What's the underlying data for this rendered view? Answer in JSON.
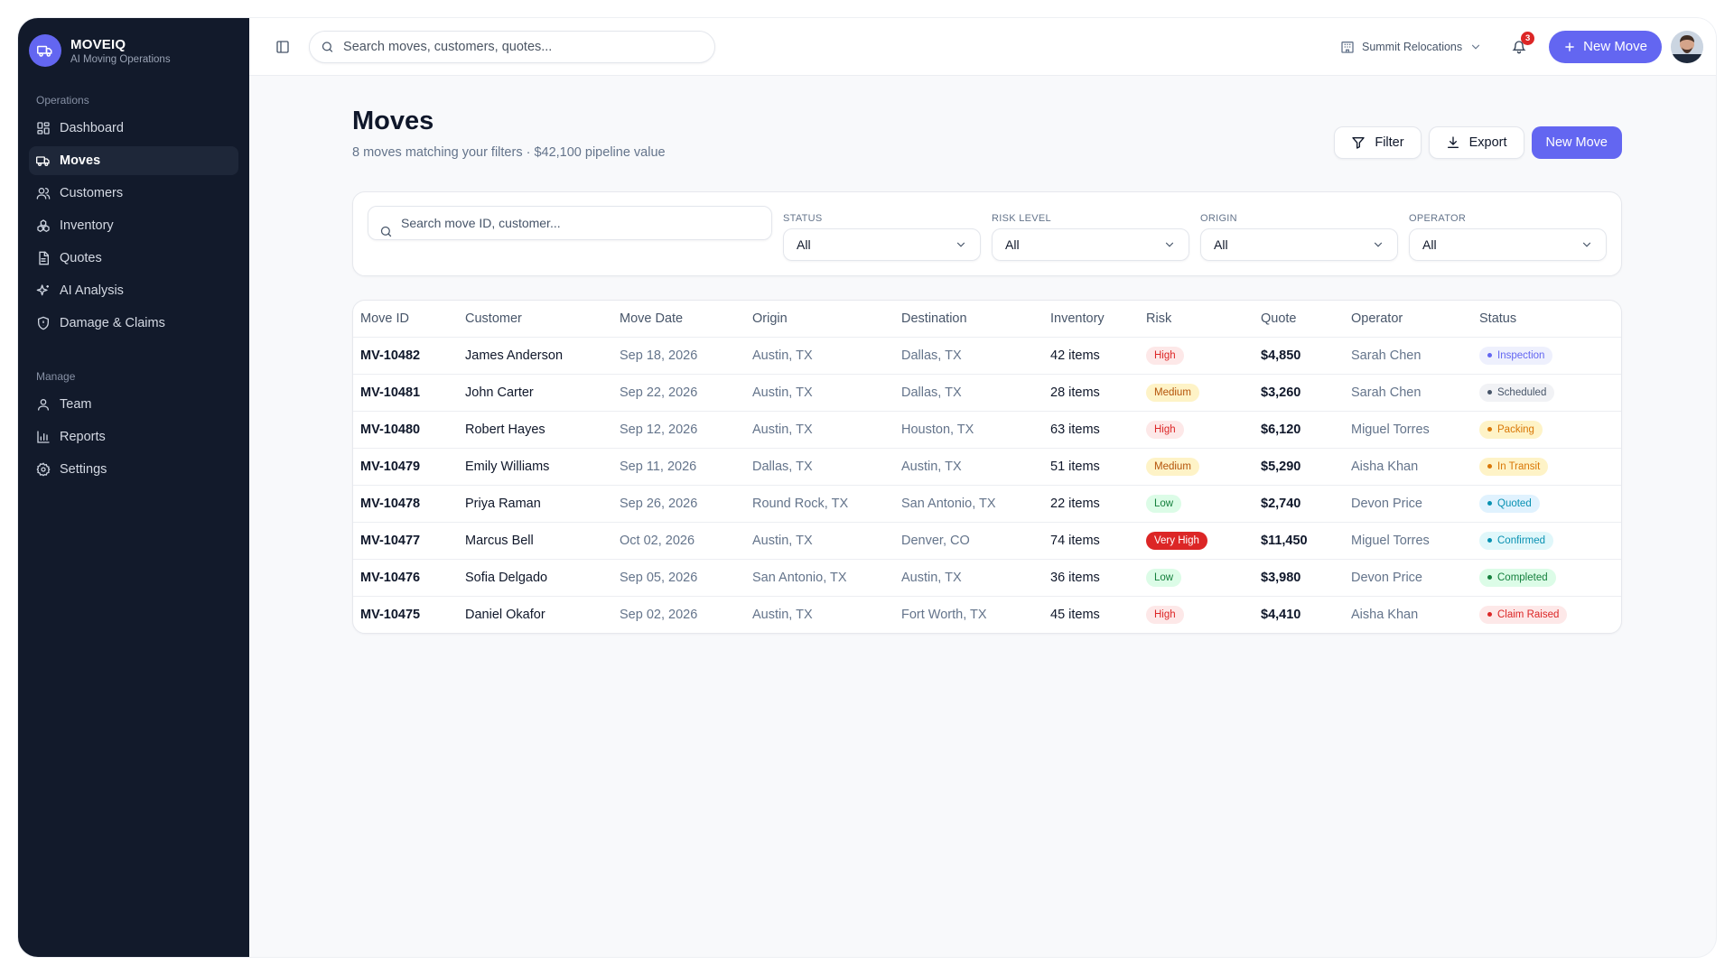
{
  "app": {
    "name": "MOVEIQ",
    "tagline": "AI Moving Operations"
  },
  "sidebar": {
    "sections": [
      {
        "title": "Operations",
        "items": [
          {
            "label": "Dashboard",
            "icon": "grid-icon"
          },
          {
            "label": "Moves",
            "icon": "truck-icon",
            "active": true
          },
          {
            "label": "Customers",
            "icon": "users-icon"
          },
          {
            "label": "Inventory",
            "icon": "boxes-icon"
          },
          {
            "label": "Quotes",
            "icon": "document-icon"
          },
          {
            "label": "AI Analysis",
            "icon": "sparkles-icon"
          },
          {
            "label": "Damage & Claims",
            "icon": "shield-icon"
          }
        ]
      },
      {
        "title": "Manage",
        "items": [
          {
            "label": "Team",
            "icon": "user-icon"
          },
          {
            "label": "Reports",
            "icon": "bar-chart-icon"
          },
          {
            "label": "Settings",
            "icon": "gear-icon"
          }
        ]
      }
    ]
  },
  "topbar": {
    "search_placeholder": "Search moves, customers, quotes...",
    "org_name": "Summit Relocations",
    "notification_count": "3",
    "new_move_label": "New Move"
  },
  "page": {
    "title": "Moves",
    "subtitle": "8 moves matching your filters · $42,100 pipeline value",
    "filter_label": "Filter",
    "export_label": "Export",
    "new_move_label": "New Move"
  },
  "filters": {
    "search_placeholder": "Search move ID, customer...",
    "status": {
      "label": "STATUS",
      "value": "All"
    },
    "risk": {
      "label": "RISK LEVEL",
      "value": "All"
    },
    "origin": {
      "label": "ORIGIN",
      "value": "All"
    },
    "operator": {
      "label": "OPERATOR",
      "value": "All"
    }
  },
  "table": {
    "columns": [
      "Move ID",
      "Customer",
      "Move Date",
      "Origin",
      "Destination",
      "Inventory",
      "Risk",
      "Quote",
      "Operator",
      "Status"
    ],
    "rows": [
      {
        "id": "MV-10482",
        "customer": "James Anderson",
        "date": "Sep 18, 2026",
        "origin": "Austin, TX",
        "destination": "Dallas, TX",
        "inventory": "42 items",
        "risk": "High",
        "quote": "$4,850",
        "operator": "Sarah Chen",
        "status": "Inspection"
      },
      {
        "id": "MV-10481",
        "customer": "John Carter",
        "date": "Sep 22, 2026",
        "origin": "Austin, TX",
        "destination": "Dallas, TX",
        "inventory": "28 items",
        "risk": "Medium",
        "quote": "$3,260",
        "operator": "Sarah Chen",
        "status": "Scheduled"
      },
      {
        "id": "MV-10480",
        "customer": "Robert Hayes",
        "date": "Sep 12, 2026",
        "origin": "Austin, TX",
        "destination": "Houston, TX",
        "inventory": "63 items",
        "risk": "High",
        "quote": "$6,120",
        "operator": "Miguel Torres",
        "status": "Packing"
      },
      {
        "id": "MV-10479",
        "customer": "Emily Williams",
        "date": "Sep 11, 2026",
        "origin": "Dallas, TX",
        "destination": "Austin, TX",
        "inventory": "51 items",
        "risk": "Medium",
        "quote": "$5,290",
        "operator": "Aisha Khan",
        "status": "In Transit"
      },
      {
        "id": "MV-10478",
        "customer": "Priya Raman",
        "date": "Sep 26, 2026",
        "origin": "Round Rock, TX",
        "destination": "San Antonio, TX",
        "inventory": "22 items",
        "risk": "Low",
        "quote": "$2,740",
        "operator": "Devon Price",
        "status": "Quoted"
      },
      {
        "id": "MV-10477",
        "customer": "Marcus Bell",
        "date": "Oct 02, 2026",
        "origin": "Austin, TX",
        "destination": "Denver, CO",
        "inventory": "74 items",
        "risk": "Very High",
        "quote": "$11,450",
        "operator": "Miguel Torres",
        "status": "Confirmed"
      },
      {
        "id": "MV-10476",
        "customer": "Sofia Delgado",
        "date": "Sep 05, 2026",
        "origin": "San Antonio, TX",
        "destination": "Austin, TX",
        "inventory": "36 items",
        "risk": "Low",
        "quote": "$3,980",
        "operator": "Devon Price",
        "status": "Completed"
      },
      {
        "id": "MV-10475",
        "customer": "Daniel Okafor",
        "date": "Sep 02, 2026",
        "origin": "Austin, TX",
        "destination": "Fort Worth, TX",
        "inventory": "45 items",
        "risk": "High",
        "quote": "$4,410",
        "operator": "Aisha Khan",
        "status": "Claim Raised"
      }
    ]
  },
  "colors": {
    "accent": "#6366f1",
    "sidebar_bg": "#121a2b",
    "risk": {
      "High": {
        "bg": "#fde8e8",
        "fg": "#dc2626"
      },
      "Medium": {
        "bg": "#fef3c7",
        "fg": "#b45309"
      },
      "Low": {
        "bg": "#dcfce7",
        "fg": "#15803d"
      },
      "Very High": {
        "bg": "#dc2626",
        "fg": "#ffffff"
      }
    },
    "status": {
      "Inspection": {
        "bg": "#eef0fd",
        "fg": "#6366f1"
      },
      "Scheduled": {
        "bg": "#f1f2f5",
        "fg": "#475569"
      },
      "Packing": {
        "bg": "#fef3c7",
        "fg": "#d97706"
      },
      "In Transit": {
        "bg": "#fef3c7",
        "fg": "#d97706"
      },
      "Quoted": {
        "bg": "#e0f2fe",
        "fg": "#0891b2"
      },
      "Confirmed": {
        "bg": "#e0f7fa",
        "fg": "#0891b2"
      },
      "Completed": {
        "bg": "#dcfce7",
        "fg": "#15803d"
      },
      "Claim Raised": {
        "bg": "#fde8e8",
        "fg": "#dc2626"
      }
    }
  }
}
